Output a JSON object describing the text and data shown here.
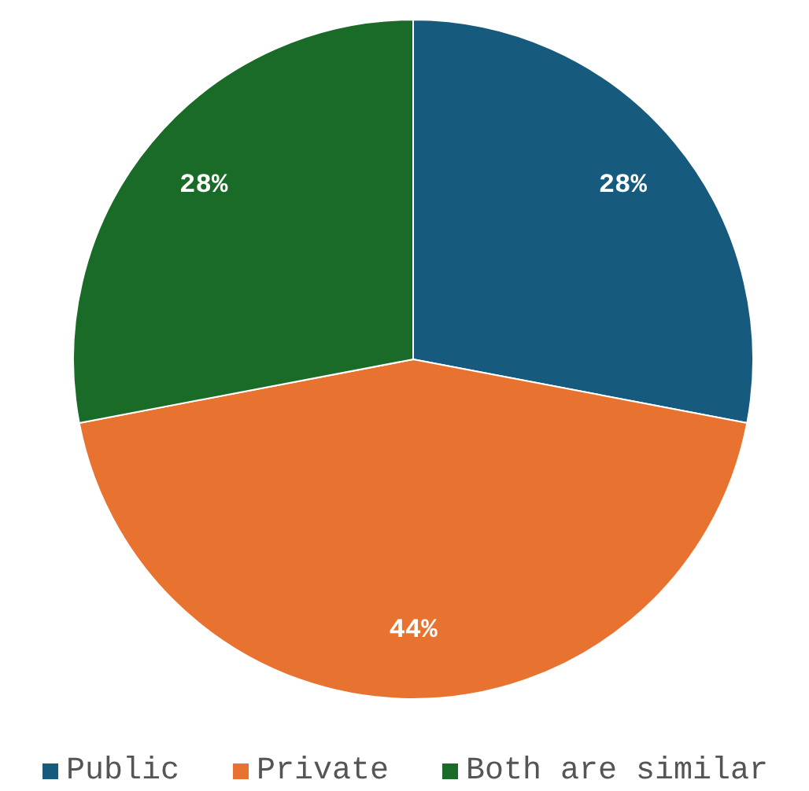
{
  "chart_data": {
    "type": "pie",
    "categories": [
      "Public",
      "Private",
      "Both are similar"
    ],
    "values": [
      28,
      44,
      28
    ],
    "colors": [
      "#165a7e",
      "#e87330",
      "#1a6b27"
    ],
    "value_labels": [
      "28%",
      "44%",
      "28%"
    ],
    "legend": "bottom"
  }
}
